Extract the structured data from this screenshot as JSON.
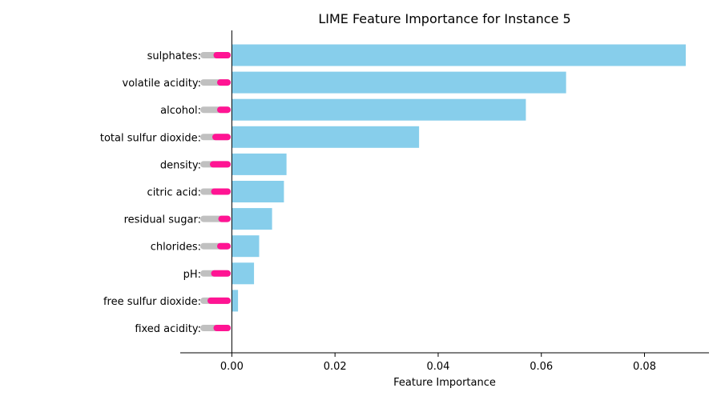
{
  "chart_data": {
    "type": "bar",
    "orientation": "horizontal",
    "title": "LIME Feature Importance for Instance 5",
    "xlabel": "Feature Importance",
    "ylabel": "",
    "xlim": [
      -0.01,
      0.0925
    ],
    "xticks": [
      "0.00",
      "0.02",
      "0.04",
      "0.06",
      "0.08"
    ],
    "xtick_values": [
      0.0,
      0.02,
      0.04,
      0.06,
      0.08
    ],
    "categories": [
      "sulphates:",
      "volatile acidity:",
      "alcohol:",
      "total sulfur dioxide:",
      "density:",
      "citric acid:",
      "residual sugar:",
      "chlorides:",
      "pH:",
      "free sulfur dioxide:",
      "fixed acidity:"
    ],
    "values": [
      0.088,
      0.0648,
      0.057,
      0.0363,
      0.0106,
      0.0101,
      0.0078,
      0.0053,
      0.0043,
      0.0012,
      0.0
    ],
    "indicator_fraction": [
      0.45,
      0.3,
      0.3,
      0.5,
      0.6,
      0.55,
      0.25,
      0.3,
      0.55,
      0.7,
      0.45
    ],
    "bar_color": "#87CEEB",
    "indicator_track_color": "#c0c0c0",
    "indicator_fill_color": "#ff1493",
    "grid": false
  }
}
